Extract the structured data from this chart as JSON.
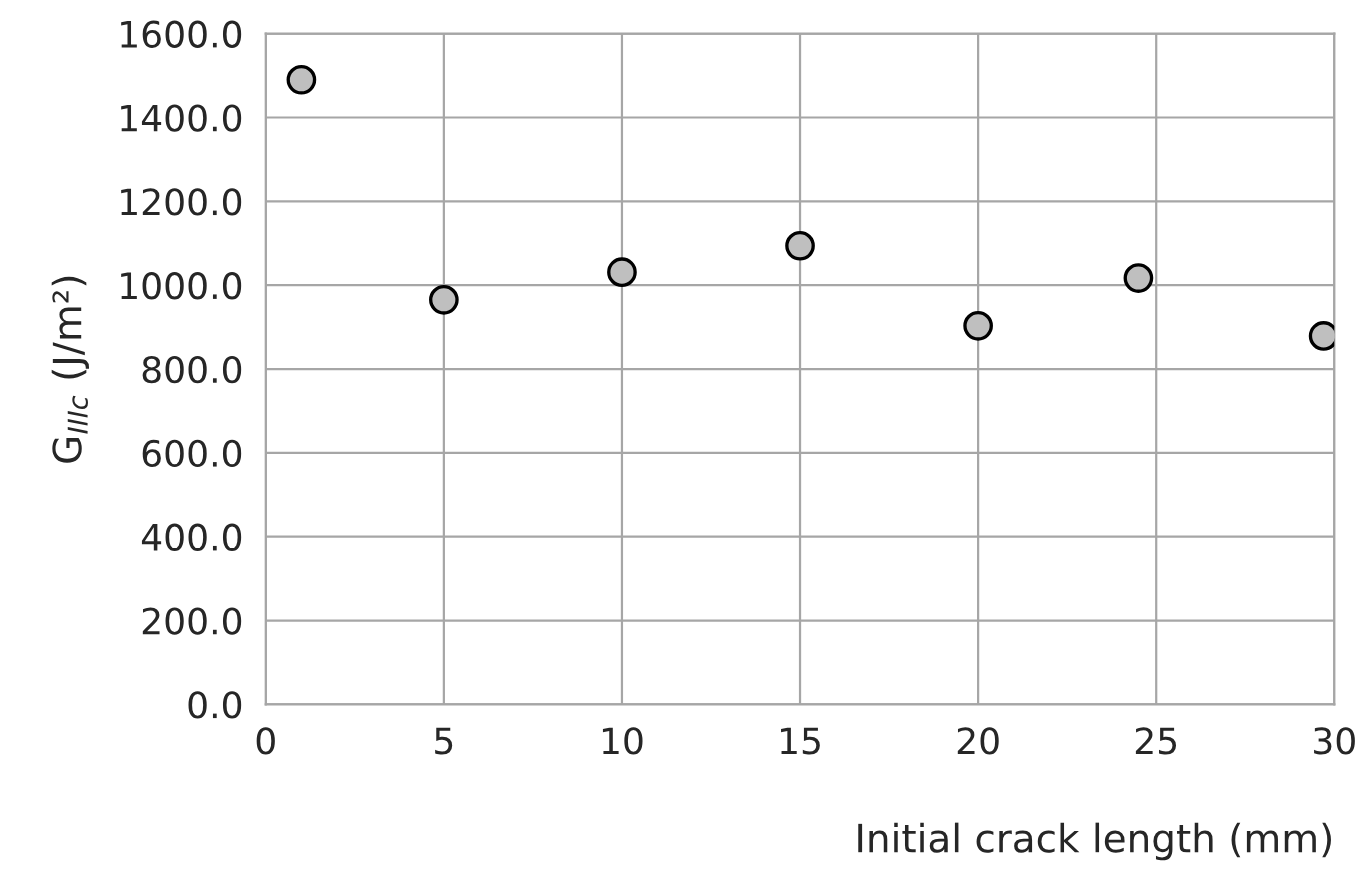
{
  "chart_data": {
    "type": "scatter",
    "xlabel": "Initial crack length (mm)",
    "ylabel": "G$_{IIIc}$ (J/m²)",
    "x": [
      1,
      5,
      10,
      15,
      20,
      24.5,
      29.7
    ],
    "series": [
      {
        "color": "#bfbfbf",
        "values": [
          1490,
          965,
          1031,
          1094,
          903,
          1017,
          879
        ]
      }
    ],
    "xlim": [
      0,
      30
    ],
    "xticks": [
      0,
      5,
      10,
      15,
      20,
      25,
      30
    ],
    "ylim": [
      0,
      1600
    ],
    "yticks": [
      {
        "value": 0,
        "label": "0.0"
      },
      {
        "value": 200,
        "label": "200.0"
      },
      {
        "value": 400,
        "label": "400.0"
      },
      {
        "value": 600,
        "label": "600.0"
      },
      {
        "value": 800,
        "label": "800.0"
      },
      {
        "value": 1000,
        "label": "1000.0"
      },
      {
        "value": 1200,
        "label": "1200.0"
      },
      {
        "value": 1400,
        "label": "1400.0"
      },
      {
        "value": 1600,
        "label": "1600.0"
      }
    ],
    "grid": true,
    "marker": "circle"
  }
}
